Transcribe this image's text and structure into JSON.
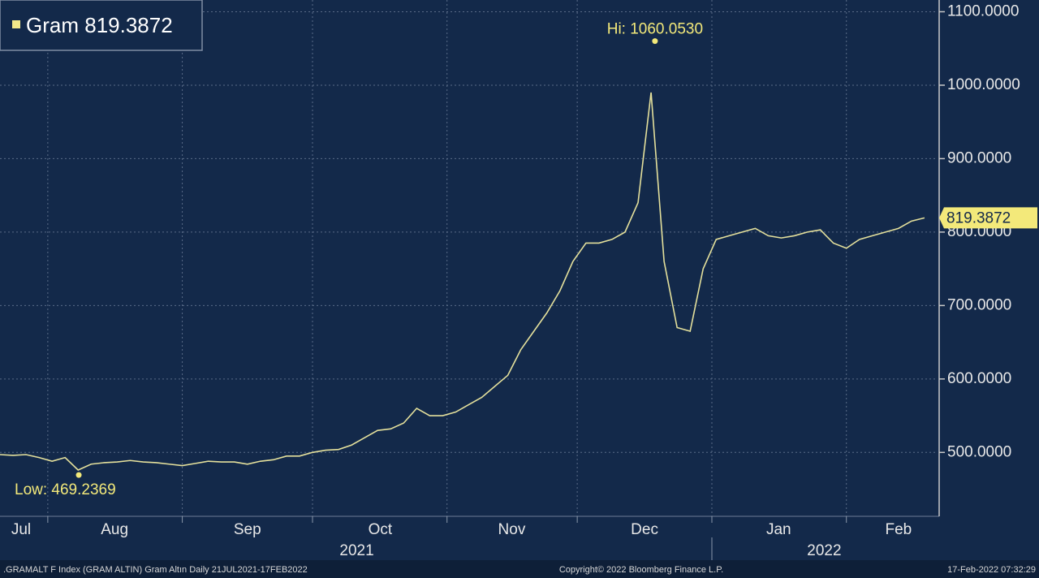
{
  "chart_data": {
    "type": "line",
    "series": [
      {
        "name": "Gram",
        "color": "#e4e09c",
        "values": [
          497,
          496,
          497,
          493,
          488,
          493,
          476,
          484,
          486,
          487,
          489,
          487,
          486,
          484,
          482,
          485,
          488,
          487,
          487,
          484,
          488,
          490,
          495,
          495,
          500,
          503,
          504,
          510,
          520,
          530,
          532,
          540,
          560,
          550,
          550,
          555,
          565,
          575,
          590,
          605,
          640,
          665,
          690,
          720,
          760,
          785,
          785,
          790,
          800,
          840,
          990,
          760,
          670,
          665,
          750,
          790,
          795,
          800,
          805,
          795,
          792,
          795,
          800,
          803,
          785,
          778,
          790,
          795,
          800,
          805,
          815,
          819.3872
        ]
      }
    ],
    "xlim": [
      0,
      72
    ],
    "ylim": [
      413,
      1116
    ],
    "yticks": [
      {
        "value": 500,
        "label": "500.0000"
      },
      {
        "value": 600,
        "label": "600.0000"
      },
      {
        "value": 700,
        "label": "700.0000"
      },
      {
        "value": 800,
        "label": "800.0000"
      },
      {
        "value": 900,
        "label": "900.0000"
      },
      {
        "value": 1000,
        "label": "1000.0000"
      },
      {
        "value": 1100,
        "label": "1100.0000"
      }
    ],
    "xticks": [
      {
        "value": 1.6,
        "label": "Jul"
      },
      {
        "value": 8.8,
        "label": "Aug"
      },
      {
        "value": 19,
        "label": "Sep"
      },
      {
        "value": 29.2,
        "label": "Oct"
      },
      {
        "value": 39.3,
        "label": "Nov"
      },
      {
        "value": 49.5,
        "label": "Dec"
      },
      {
        "value": 59.8,
        "label": "Jan"
      },
      {
        "value": 69,
        "label": "Feb"
      }
    ],
    "xgrid": [
      3.67,
      14,
      24,
      34.33,
      44.33,
      54.67,
      65
    ],
    "year_labels": [
      {
        "value": 27.4,
        "label": "2021"
      },
      {
        "value": 63.3,
        "label": "2022"
      }
    ],
    "grid": true,
    "annotations": [
      {
        "text": "Hi:",
        "x": 50.3,
        "value": 1060.053,
        "value_label": "1060.0530"
      },
      {
        "text": "Low:",
        "x": 6.05,
        "value": 469.2369
      }
    ],
    "footer": {
      "left": ".GRAMALT F Index (GRAM ALTIN) Gram Altın  Daily 21JUL2021-17FEB2022",
      "center": "Copyright© 2022 Bloomberg Finance L.P.",
      "right": "17-Feb-2022 07:32:29"
    }
  }
}
